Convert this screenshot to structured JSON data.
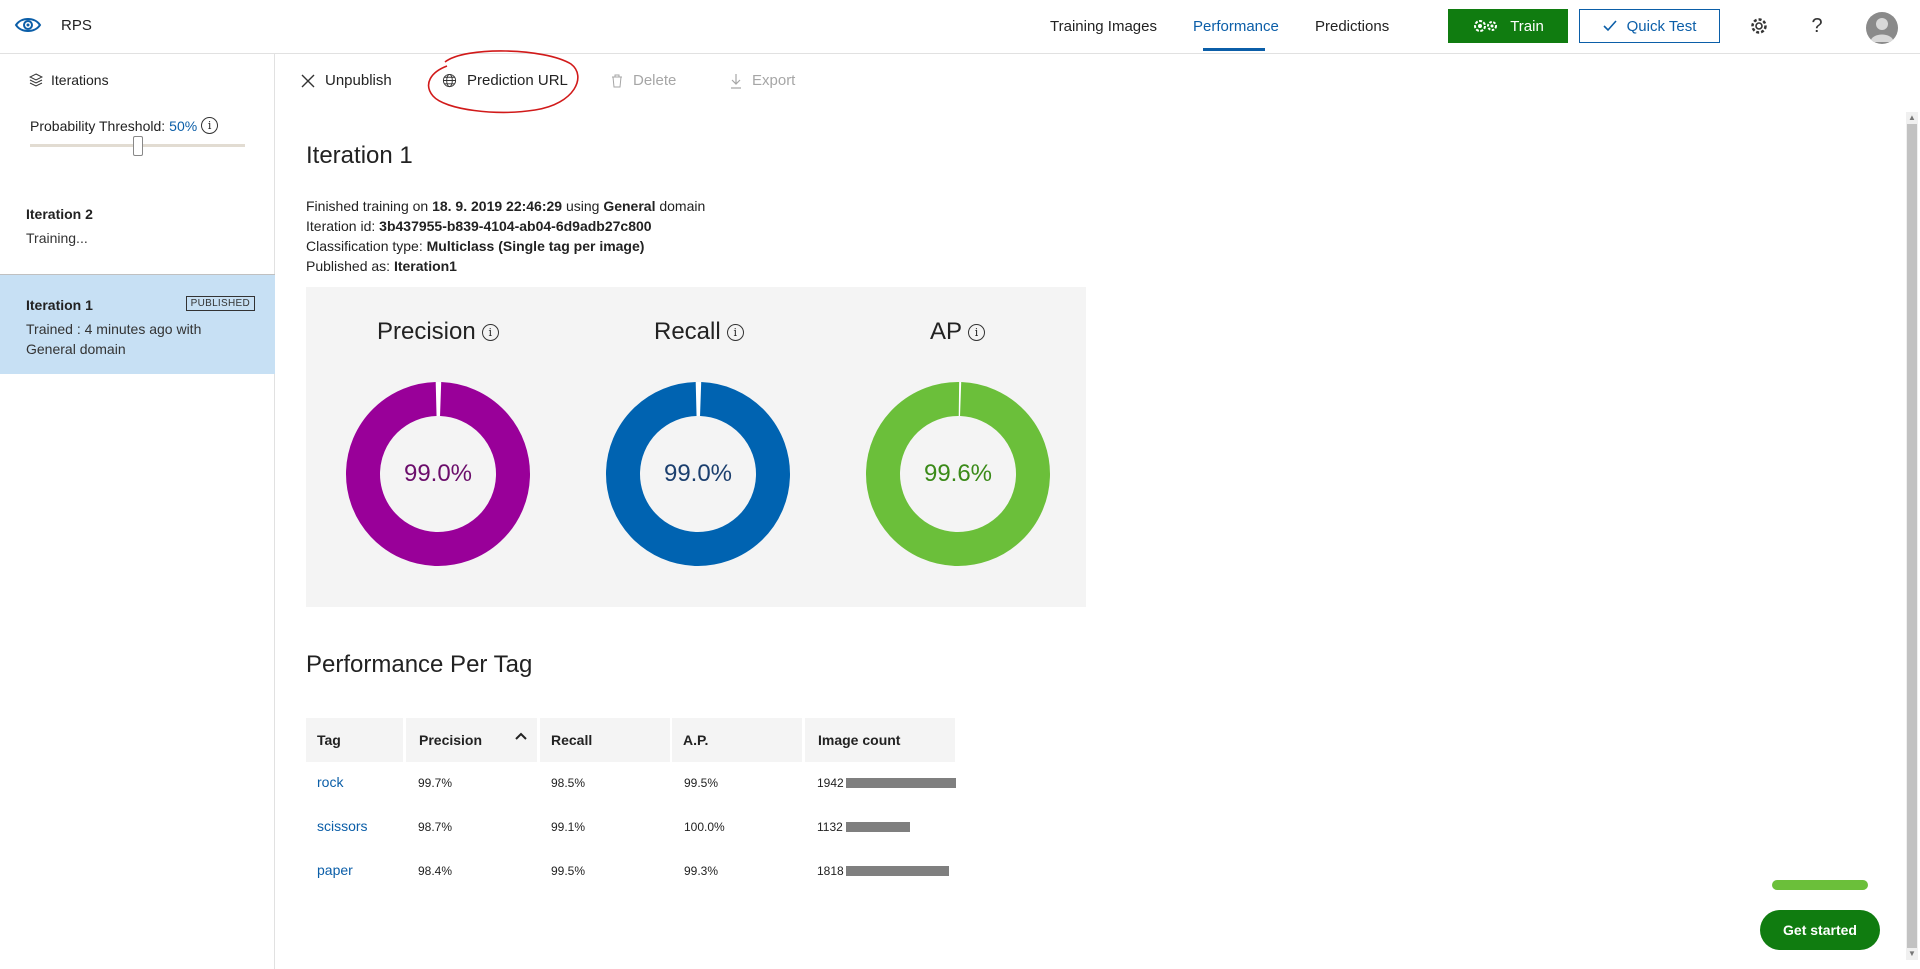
{
  "header": {
    "app_name": "RPS",
    "tabs": [
      {
        "label": "Training Images",
        "active": false
      },
      {
        "label": "Performance",
        "active": true
      },
      {
        "label": "Predictions",
        "active": false
      }
    ],
    "train_label": "Train",
    "quick_test_label": "Quick Test",
    "help_label": "?"
  },
  "sidebar": {
    "iterations_label": "Iterations",
    "threshold_label": "Probability Threshold:",
    "threshold_value": "50%",
    "threshold_fraction": 0.5,
    "items": [
      {
        "title": "Iteration 2",
        "status": "Training..."
      },
      {
        "title": "Iteration 1",
        "badge": "PUBLISHED",
        "line1": "Trained : 4 minutes ago with",
        "line2": "General domain",
        "selected": true
      }
    ]
  },
  "toolbar": {
    "unpublish": "Unpublish",
    "prediction_url": "Prediction URL",
    "delete": "Delete",
    "export": "Export"
  },
  "main": {
    "title": "Iteration 1",
    "finished_prefix": "Finished training on",
    "finished_date": "18. 9. 2019 22:46:29",
    "finished_using": "using",
    "finished_domain": "General",
    "finished_suffix": "domain",
    "iteration_id_label": "Iteration id:",
    "iteration_id": "3b437955-b839-4104-ab04-6d9adb27c800",
    "classification_label": "Classification type:",
    "classification": "Multiclass (Single tag per image)",
    "published_label": "Published as:",
    "published": "Iteration1"
  },
  "metrics": [
    {
      "label": "Precision",
      "value": 99.0,
      "display": "99.0%",
      "color": "#990099",
      "text_color": "#6b0d6b"
    },
    {
      "label": "Recall",
      "value": 99.0,
      "display": "99.0%",
      "color": "#0063b1",
      "text_color": "#1b3f6e"
    },
    {
      "label": "AP",
      "value": 99.6,
      "display": "99.6%",
      "color": "#6bbf3a",
      "text_color": "#3a8a18"
    }
  ],
  "per_tag": {
    "heading": "Performance Per Tag",
    "columns": [
      "Tag",
      "Precision",
      "Recall",
      "A.P.",
      "Image count"
    ],
    "rows": [
      {
        "tag": "rock",
        "precision": "99.7%",
        "recall": "98.5%",
        "ap": "99.5%",
        "count": "1942",
        "count_value": 1942
      },
      {
        "tag": "scissors",
        "precision": "98.7%",
        "recall": "99.1%",
        "ap": "100.0%",
        "count": "1132",
        "count_value": 1132
      },
      {
        "tag": "paper",
        "precision": "98.4%",
        "recall": "99.5%",
        "ap": "99.3%",
        "count": "1818",
        "count_value": 1818
      }
    ]
  },
  "get_started_label": "Get started",
  "colors": {
    "accent": "#0b5ea8",
    "train_green": "#107c10",
    "selected_bg": "#c7e0f4"
  }
}
